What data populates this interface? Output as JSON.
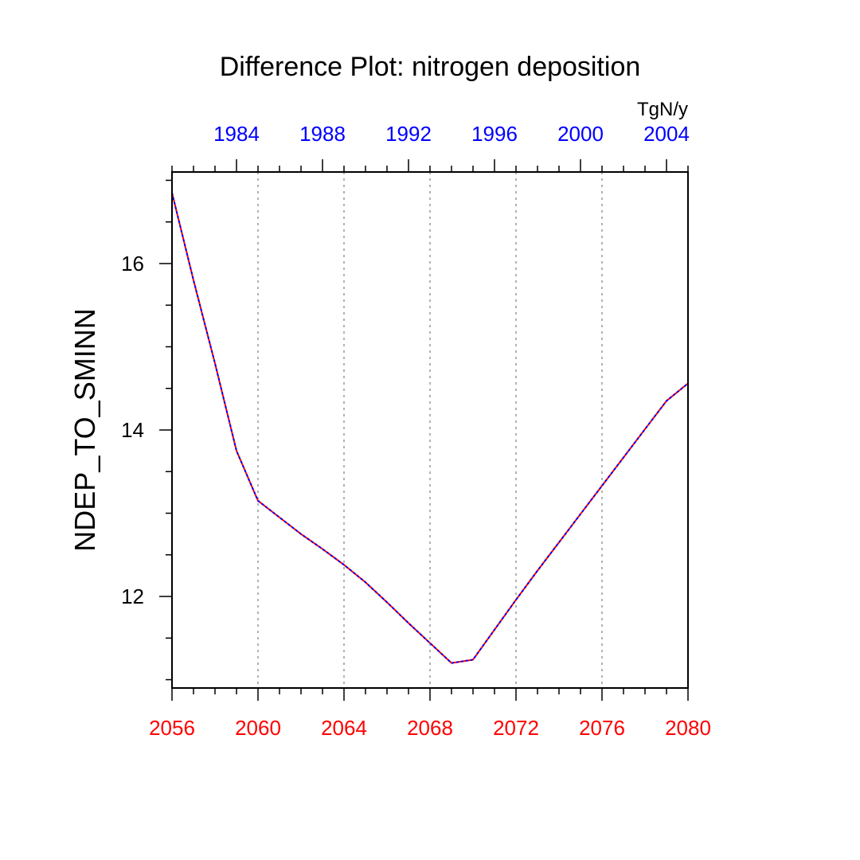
{
  "chart_data": {
    "type": "line",
    "title": "Difference Plot: nitrogen deposition",
    "ylabel": "NDEP_TO_SMINN",
    "units": "TgN/y",
    "grid": "vertical dotted at major bottom ticks",
    "colors": {
      "bottom_axis": "#ff0000",
      "top_axis": "#0000ff",
      "series_a": "#ff0000",
      "series_b": "#0000ff",
      "grid": "#999999",
      "frame": "#000000"
    },
    "xlim": [
      2056,
      2080
    ],
    "ylim": [
      10.9,
      17.1
    ],
    "x_major_ticks": [
      2056,
      2060,
      2064,
      2068,
      2072,
      2076,
      2080
    ],
    "x_tick_labels": [
      "2056",
      "2060",
      "2064",
      "2068",
      "2072",
      "2076",
      "2080"
    ],
    "top_x_lim": [
      1981,
      2005
    ],
    "top_major_ticks": [
      1984,
      1988,
      1992,
      1996,
      2000,
      2004
    ],
    "top_tick_labels": [
      "1984",
      "1988",
      "1992",
      "1996",
      "2000",
      "2004"
    ],
    "y_major_ticks": [
      12,
      14,
      16
    ],
    "y_tick_labels": [
      "12",
      "14",
      "16"
    ],
    "y_minor_step": 0.5,
    "x_minor_step": 1,
    "x": [
      2056,
      2057,
      2058,
      2059,
      2060,
      2061,
      2062,
      2063,
      2064,
      2065,
      2066,
      2067,
      2068,
      2069,
      2070,
      2071,
      2072,
      2073,
      2074,
      2075,
      2076,
      2077,
      2078,
      2079,
      2080
    ],
    "series": [
      {
        "values": [
          16.85,
          15.8,
          14.8,
          13.75,
          13.15,
          12.95,
          12.75,
          12.57,
          12.38,
          12.17,
          11.93,
          11.68,
          11.44,
          11.2,
          11.24,
          11.6,
          11.96,
          12.31,
          12.65,
          12.99,
          13.33,
          13.67,
          14.01,
          14.35,
          14.56
        ],
        "style": "solid"
      },
      {
        "values": [
          16.85,
          15.8,
          14.8,
          13.75,
          13.15,
          12.95,
          12.75,
          12.57,
          12.38,
          12.17,
          11.93,
          11.68,
          11.44,
          11.2,
          11.24,
          11.6,
          11.96,
          12.31,
          12.65,
          12.99,
          13.33,
          13.67,
          14.01,
          14.35,
          14.56
        ],
        "style": "dashed"
      }
    ]
  }
}
